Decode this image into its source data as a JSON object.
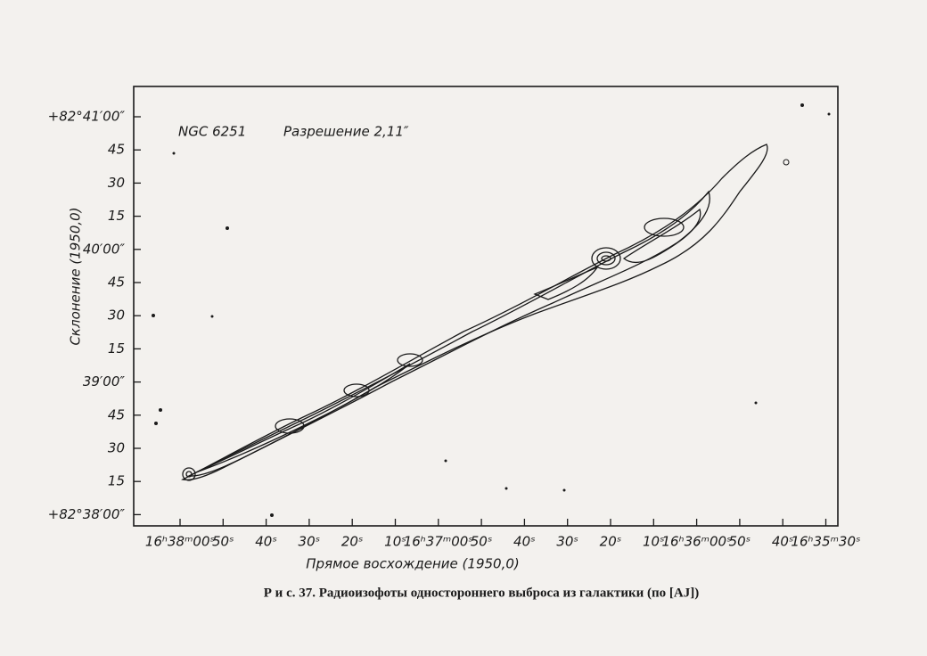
{
  "figure": {
    "annotations": [
      "NGC 6251",
      "Разрешение 2,11″"
    ],
    "y_label": "Склонение (1950,0)",
    "x_label": "Прямое восхождение (1950,0)",
    "y_ticks": [
      "+82°41′00″",
      "45",
      "30",
      "15",
      "40′00″",
      "45",
      "30",
      "15",
      "39′00″",
      "45",
      "30",
      "15",
      "+82°38′00″"
    ],
    "x_ticks": [
      "16ʰ38ᵐ00ˢ",
      "50ˢ",
      "40ˢ",
      "30ˢ",
      "20ˢ",
      "10ˢ",
      "16ʰ37ᵐ00ˢ",
      "50ˢ",
      "40ˢ",
      "30ˢ",
      "20ˢ",
      "10ˢ",
      "16ʰ36ᵐ00ˢ",
      "50ˢ",
      "40ˢ",
      "16ʰ35ᵐ30ˢ"
    ],
    "caption": "Р и с. 37.  Радиоизофоты одностороннего выброса из галактики (по [AJ])"
  }
}
